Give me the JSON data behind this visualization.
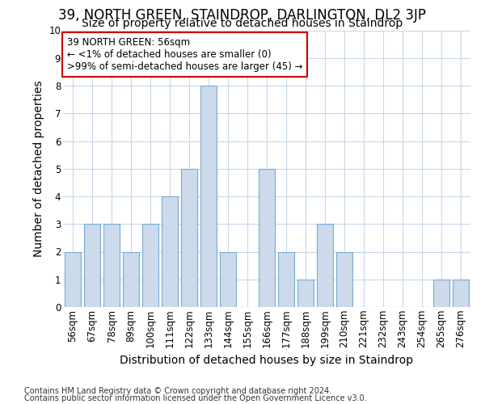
{
  "title": "39, NORTH GREEN, STAINDROP, DARLINGTON, DL2 3JP",
  "subtitle": "Size of property relative to detached houses in Staindrop",
  "xlabel": "Distribution of detached houses by size in Staindrop",
  "ylabel": "Number of detached properties",
  "categories": [
    "56sqm",
    "67sqm",
    "78sqm",
    "89sqm",
    "100sqm",
    "111sqm",
    "122sqm",
    "133sqm",
    "144sqm",
    "155sqm",
    "166sqm",
    "177sqm",
    "188sqm",
    "199sqm",
    "210sqm",
    "221sqm",
    "232sqm",
    "243sqm",
    "254sqm",
    "265sqm",
    "276sqm"
  ],
  "values": [
    2,
    3,
    3,
    2,
    3,
    4,
    5,
    8,
    2,
    0,
    5,
    2,
    1,
    3,
    2,
    0,
    0,
    0,
    0,
    1,
    1
  ],
  "bar_color": "#ccdaeb",
  "bar_edge_color": "#7aaad0",
  "annotation_box_text": "39 NORTH GREEN: 56sqm\n← <1% of detached houses are smaller (0)\n>99% of semi-detached houses are larger (45) →",
  "annotation_box_facecolor": "#ffffff",
  "annotation_box_edgecolor": "#cc0000",
  "ylim": [
    0,
    10
  ],
  "yticks": [
    0,
    1,
    2,
    3,
    4,
    5,
    6,
    7,
    8,
    9,
    10
  ],
  "footnote1": "Contains HM Land Registry data © Crown copyright and database right 2024.",
  "footnote2": "Contains public sector information licensed under the Open Government Licence v3.0.",
  "bg_color": "#ffffff",
  "plot_bg_color": "#ffffff",
  "grid_color": "#c8d8ea",
  "title_fontsize": 12,
  "subtitle_fontsize": 10,
  "axis_label_fontsize": 10,
  "tick_fontsize": 8.5,
  "annotation_fontsize": 8.5,
  "footnote_fontsize": 7
}
